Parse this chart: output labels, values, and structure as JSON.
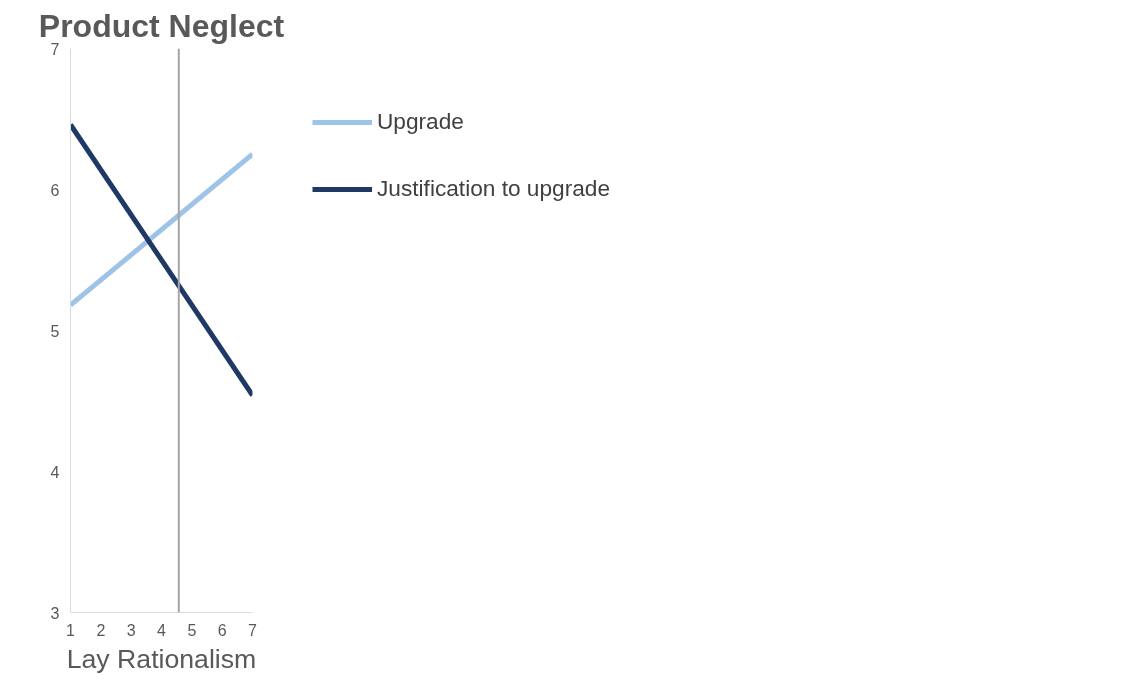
{
  "chart_data": {
    "type": "line",
    "title": "Product Neglect",
    "xlabel": "Lay Rationalism",
    "x": [
      1,
      7
    ],
    "series": [
      {
        "name": "Upgrade",
        "color": "#9dc3e6",
        "values": [
          5.18,
          6.25
        ]
      },
      {
        "name": "Justification to upgrade",
        "color": "#1f3864",
        "values": [
          6.46,
          4.54
        ]
      }
    ],
    "xlim": [
      1,
      7
    ],
    "xticks": [
      1,
      2,
      3,
      4,
      5,
      6,
      7
    ],
    "ylim": [
      3,
      7
    ],
    "yticks": [
      3,
      4,
      5,
      6,
      7
    ],
    "ref_lines": [
      {
        "axis": "x",
        "value": 4.57,
        "label": null,
        "color": "#a6a6a6"
      }
    ],
    "grid": false,
    "legend": "right",
    "marker": "none",
    "line_style": "solid"
  }
}
